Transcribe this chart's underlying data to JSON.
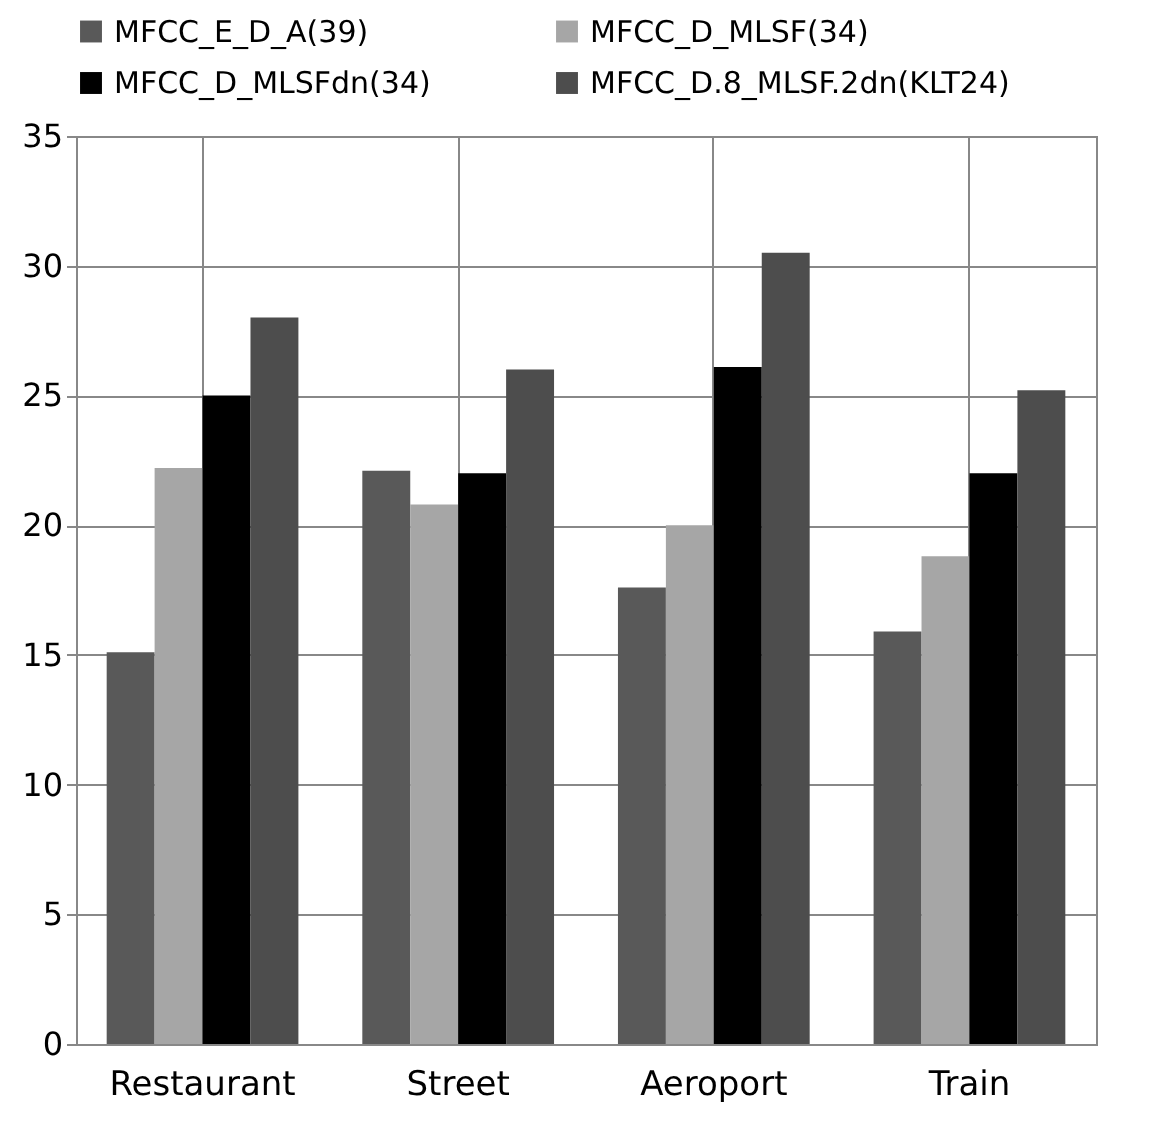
{
  "chart_data": {
    "type": "bar",
    "categories": [
      "Restaurant",
      "Street",
      "Aeroport",
      "Train"
    ],
    "series": [
      {
        "name": "MFCC_E_D_A(39)",
        "color": "#595959",
        "values": [
          15.1,
          22.1,
          17.6,
          15.9
        ]
      },
      {
        "name": "MFCC_D_MLSF(34)",
        "color": "#a6a6a6",
        "values": [
          22.2,
          20.8,
          20.0,
          18.8
        ]
      },
      {
        "name": "MFCC_D_MLSFdn(34)",
        "color": "#000000",
        "values": [
          25.0,
          22.0,
          26.1,
          22.0
        ]
      },
      {
        "name": "MFCC_D.8_MLSF.2dn(KLT24)",
        "color": "#4d4d4d",
        "values": [
          28.0,
          26.0,
          30.5,
          25.2
        ]
      }
    ],
    "ylim": [
      0,
      35
    ],
    "yticks": [
      0,
      5,
      10,
      15,
      20,
      25,
      30,
      35
    ],
    "grid": true,
    "legend": "top"
  }
}
